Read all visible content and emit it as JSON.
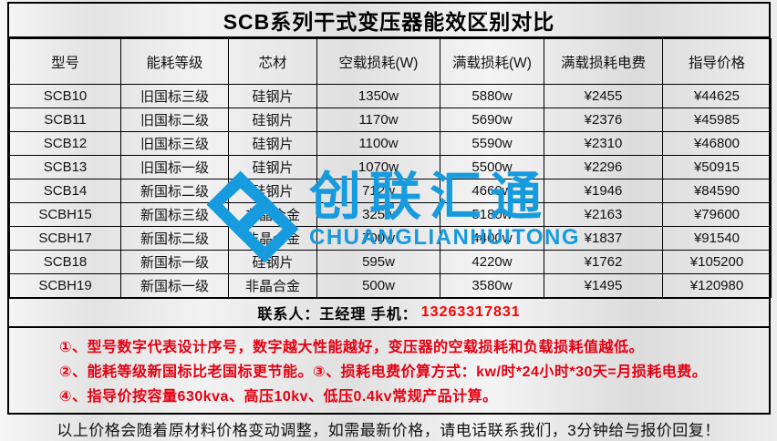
{
  "title": "SCB系列干式变压器能效区别对比",
  "table": {
    "headers": [
      "型号",
      "能耗等级",
      "芯材",
      "空载损耗(W)",
      "满载损耗(W)",
      "满载损耗电费",
      "指导价格"
    ],
    "rows": [
      [
        "SCB10",
        "旧国标三级",
        "硅钢片",
        "1350w",
        "5880w",
        "¥2455",
        "¥44625"
      ],
      [
        "SCB11",
        "旧国标二级",
        "硅钢片",
        "1170w",
        "5690w",
        "¥2376",
        "¥45985"
      ],
      [
        "SCB12",
        "旧国标三级",
        "硅钢片",
        "1100w",
        "5590w",
        "¥2310",
        "¥46800"
      ],
      [
        "SCB13",
        "旧国标一级",
        "硅钢片",
        "1070w",
        "5500w",
        "¥2296",
        "¥50915"
      ],
      [
        "SCB14",
        "新国标二级",
        "硅钢片",
        "712w",
        "4660w",
        "¥1946",
        "¥84590"
      ],
      [
        "SCBH15",
        "新国标三级",
        "非晶合金",
        "325w",
        "5180w",
        "¥2163",
        "¥79600"
      ],
      [
        "SCBH17",
        "新国标二级",
        "非晶合金",
        "700w",
        "4400w",
        "¥1837",
        "¥91540"
      ],
      [
        "SCB18",
        "新国标一级",
        "硅钢片",
        "595w",
        "4220w",
        "¥1762",
        "¥105200"
      ],
      [
        "SCBH19",
        "新国标一级",
        "非晶合金",
        "500w",
        "3580w",
        "¥1495",
        "¥120980"
      ]
    ]
  },
  "contact": {
    "label": "联系人：王经理  手机：",
    "phone": "13263317831"
  },
  "notes": [
    "①、型号数字代表设计序号，数字越大性能越好，变压器的空载损耗和负载损耗值越低。",
    "②、能耗等级新国标比老国标更节能。③、损耗电费价算方式：kw/时*24小时*30天=月损耗电费。",
    "④、指导价按容量630kva、高压10kv、低压0.4kv常规产品计算。"
  ],
  "footer": "以上价格会随着原材料价格变动调整，如需最新价格，请电话联系我们，3分钟给与报价回复！",
  "watermark": {
    "cn": "创联汇通",
    "en": "CHUANGLIANHUITONG",
    "brand_color": "#169bdf"
  },
  "colors": {
    "note_red": "#e60012",
    "phone_red": "#ff0000",
    "border_black": "#000000"
  }
}
